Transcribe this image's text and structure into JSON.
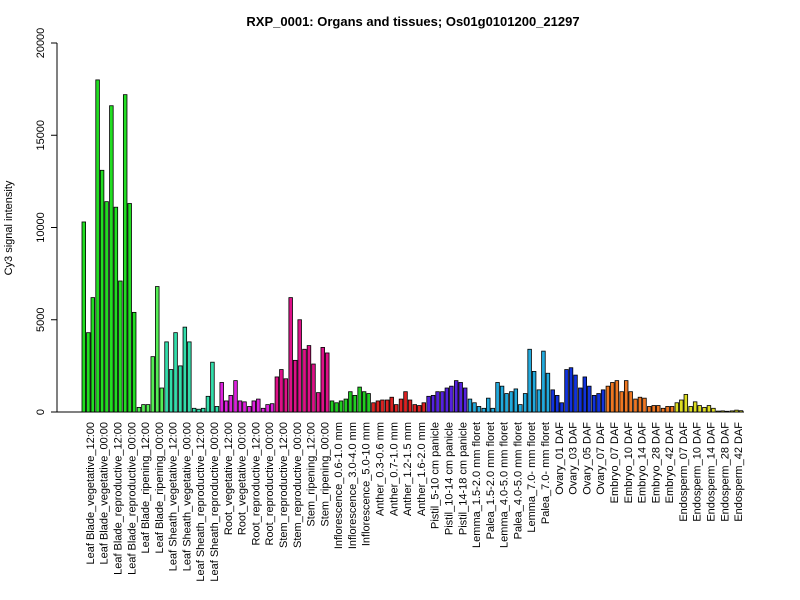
{
  "chart_data": {
    "type": "bar",
    "title": "RXP_0001: Organs and tissues; Os01g0101200_21297",
    "xlabel": "",
    "ylabel": "Cy3 signal intensity",
    "ylim": [
      0,
      20000
    ],
    "yticks": [
      0,
      5000,
      10000,
      15000,
      20000
    ],
    "grid": false,
    "legend": "none",
    "tick_labels": [
      "Leaf Blade_vegetative_12:00",
      "Leaf Blade_vegetative_00:00",
      "Leaf Blade_reproductive_12:00",
      "Leaf Blade_reproductive_00:00",
      "Leaf Blade_ripening_12:00",
      "Leaf Blade_ripening_00:00",
      "Leaf Sheath_vegetative_12:00",
      "Leaf Sheath_vegetative_00:00",
      "Leaf Sheath_reproductive_12:00",
      "Leaf Sheath_reproductive_00:00",
      "Root_vegetative_12:00",
      "Root_vegetative_00:00",
      "Root_reproductive_12:00",
      "Root_reproductive_00:00",
      "Stem_reproductive_12:00",
      "Stem_reproductive_00:00",
      "Stem_ripening_12:00",
      "Stem_ripening_00:00",
      "Inflorescence_0.6-1.0 mm",
      "Inflorescence_3.0-4.0 mm",
      "Inflorescence_5.0-10 mm",
      "Anther_0.3-0.6 mm",
      "Anther_0.7-1.0 mm",
      "Anther_1.2-1.5 mm",
      "Anther_1.6-2.0 mm",
      "Pistil_5-10 cm panicle",
      "Pistil_10-14 cm panicle",
      "Pistil_14-18 cm panicle",
      "Lemma_1.5-2.0 mm floret",
      "Palea_1.5-2.0 mm floret",
      "Lemma_4.0-5.0 mm floret",
      "Palea_4.0-5.0 mm floret",
      "Lemma_7.0- mm floret",
      "Palea_7.0- mm floret",
      "Ovary_01 DAF",
      "Ovary_03 DAF",
      "Ovary_05 DAF",
      "Ovary_07 DAF",
      "Embryo_07 DAF",
      "Embryo_10 DAF",
      "Embryo_14 DAF",
      "Embryo_28 DAF",
      "Embryo_42 DAF",
      "Endosperm_07 DAF",
      "Endosperm_10 DAF",
      "Endosperm_14 DAF",
      "Endosperm_28 DAF",
      "Endosperm_42 DAF"
    ],
    "groups": [
      {
        "color": "#22dd22",
        "values": [
          10300,
          4300,
          6200
        ]
      },
      {
        "color": "#22dd22",
        "values": [
          18000,
          13100,
          11400
        ]
      },
      {
        "color": "#22dd22",
        "values": [
          16600,
          11100,
          7100
        ]
      },
      {
        "color": "#22dd22",
        "values": [
          17200,
          11300,
          5400
        ]
      },
      {
        "color": "#55ee55",
        "values": [
          250,
          400,
          400
        ]
      },
      {
        "color": "#55ee55",
        "values": [
          3000,
          6800,
          1300
        ]
      },
      {
        "color": "#33ddaa",
        "values": [
          3800,
          2300,
          4300
        ]
      },
      {
        "color": "#33ddaa",
        "values": [
          2500,
          4600,
          3800
        ]
      },
      {
        "color": "#33ddaa",
        "values": [
          200,
          150,
          200
        ]
      },
      {
        "color": "#33ddaa",
        "values": [
          850,
          2700,
          300
        ]
      },
      {
        "color": "#dd22dd",
        "values": [
          1600,
          600,
          900
        ]
      },
      {
        "color": "#dd22dd",
        "values": [
          1700,
          600,
          550
        ]
      },
      {
        "color": "#dd22dd",
        "values": [
          300,
          600,
          700
        ]
      },
      {
        "color": "#dd22dd",
        "values": [
          200,
          400,
          450
        ]
      },
      {
        "color": "#dd1188",
        "values": [
          1900,
          2300,
          1800
        ]
      },
      {
        "color": "#dd1188",
        "values": [
          6200,
          2800,
          5000
        ]
      },
      {
        "color": "#dd1188",
        "values": [
          3400,
          3600,
          2600
        ]
      },
      {
        "color": "#dd1188",
        "values": [
          1050,
          3500,
          3200
        ]
      },
      {
        "color": "#22cc22",
        "values": [
          600,
          500,
          600
        ]
      },
      {
        "color": "#22cc22",
        "values": [
          700,
          1100,
          900
        ]
      },
      {
        "color": "#22cc22",
        "values": [
          1350,
          1100,
          1000
        ]
      },
      {
        "color": "#dd2222",
        "values": [
          500,
          600,
          650
        ]
      },
      {
        "color": "#dd2222",
        "values": [
          650,
          800,
          400
        ]
      },
      {
        "color": "#dd2222",
        "values": [
          700,
          1100,
          650
        ]
      },
      {
        "color": "#dd2222",
        "values": [
          400,
          350,
          500
        ]
      },
      {
        "color": "#5522dd",
        "values": [
          850,
          900,
          1100
        ]
      },
      {
        "color": "#5522dd",
        "values": [
          1100,
          1300,
          1400
        ]
      },
      {
        "color": "#5522dd",
        "values": [
          1700,
          1600,
          1300
        ]
      },
      {
        "color": "#22aadd",
        "values": [
          700,
          500,
          300
        ]
      },
      {
        "color": "#22aadd",
        "values": [
          200,
          750,
          200
        ]
      },
      {
        "color": "#22aadd",
        "values": [
          1600,
          1400,
          1000
        ]
      },
      {
        "color": "#22aadd",
        "values": [
          1100,
          1250,
          400
        ]
      },
      {
        "color": "#22aadd",
        "values": [
          1000,
          3400,
          2200
        ]
      },
      {
        "color": "#22aadd",
        "values": [
          1200,
          3300,
          2100
        ]
      },
      {
        "color": "#1133dd",
        "values": [
          1200,
          900,
          500
        ]
      },
      {
        "color": "#1133dd",
        "values": [
          2300,
          2400,
          2000
        ]
      },
      {
        "color": "#1133dd",
        "values": [
          1300,
          1900,
          1400
        ]
      },
      {
        "color": "#1133dd",
        "values": [
          900,
          1000,
          1200
        ]
      },
      {
        "color": "#ee7722",
        "values": [
          1400,
          1600,
          1700
        ]
      },
      {
        "color": "#ee7722",
        "values": [
          1100,
          1700,
          1100
        ]
      },
      {
        "color": "#ee7722",
        "values": [
          700,
          800,
          750
        ]
      },
      {
        "color": "#ee7722",
        "values": [
          300,
          350,
          350
        ]
      },
      {
        "color": "#ee7722",
        "values": [
          200,
          300,
          300
        ]
      },
      {
        "color": "#dddd22",
        "values": [
          500,
          650,
          950
        ]
      },
      {
        "color": "#dddd22",
        "values": [
          300,
          550,
          350
        ]
      },
      {
        "color": "#dddd22",
        "values": [
          250,
          350,
          200
        ]
      },
      {
        "color": "#dddd22",
        "values": [
          50,
          60,
          40
        ]
      },
      {
        "color": "#dddd22",
        "values": [
          60,
          100,
          70
        ]
      }
    ]
  }
}
